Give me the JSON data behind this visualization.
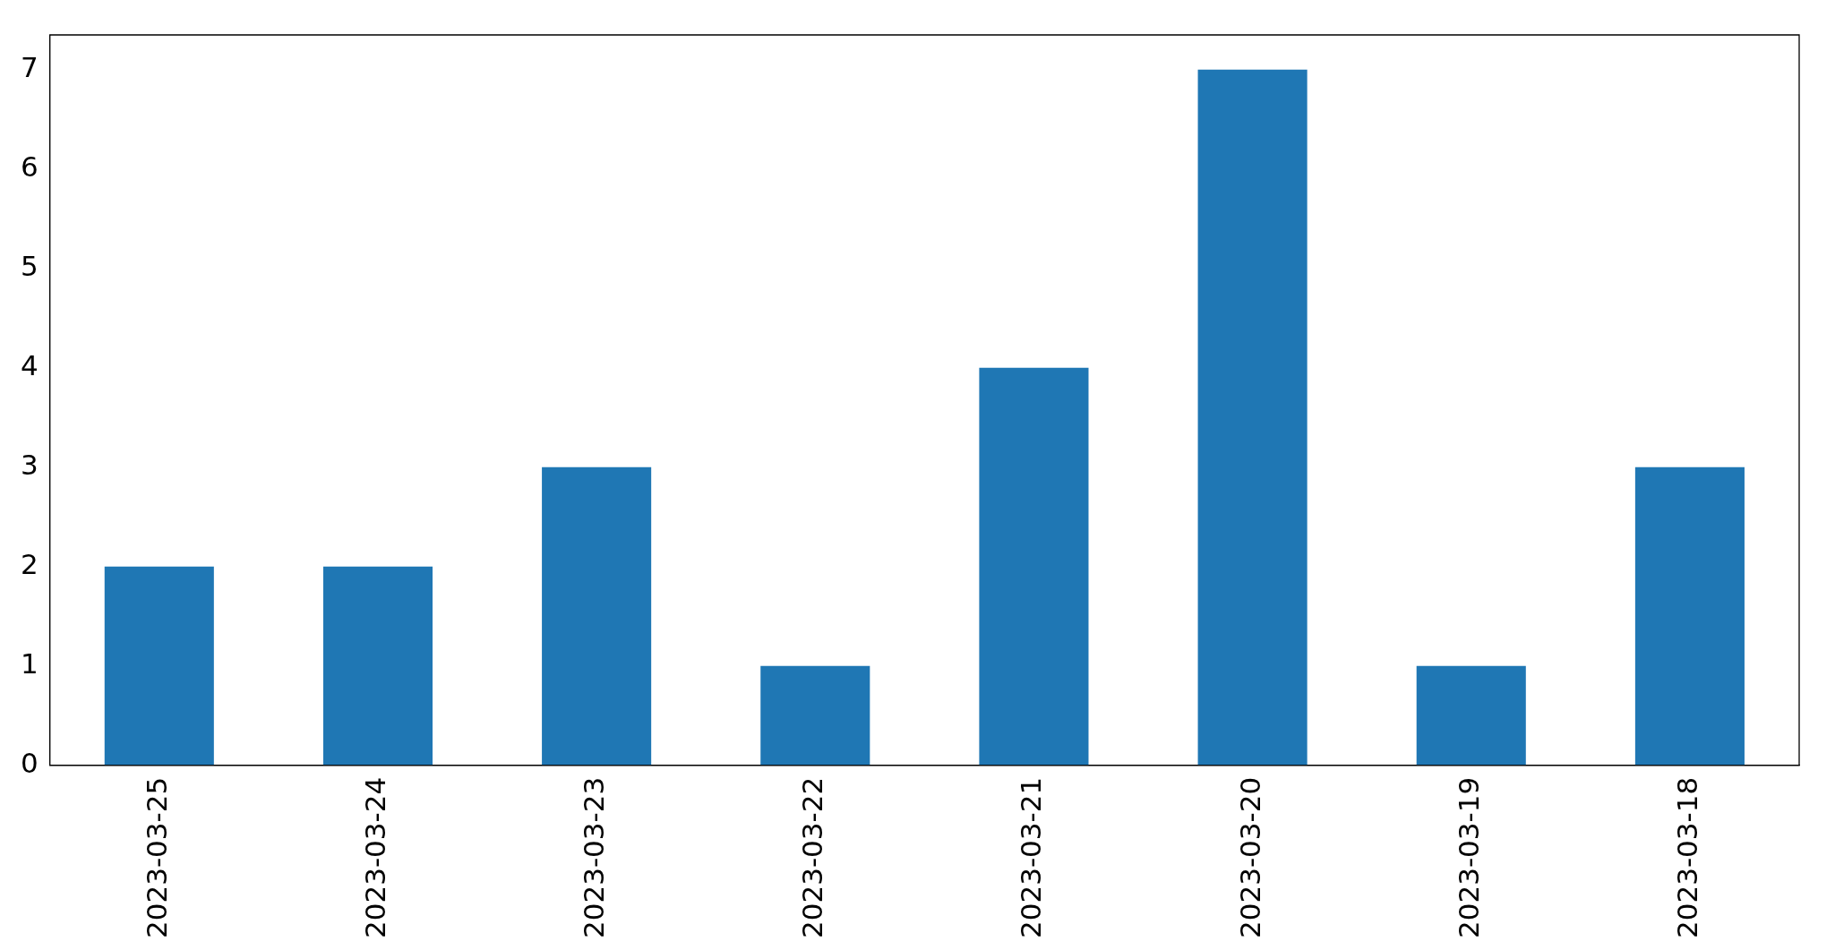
{
  "chart_data": {
    "type": "bar",
    "categories": [
      "2023-03-25",
      "2023-03-24",
      "2023-03-23",
      "2023-03-22",
      "2023-03-21",
      "2023-03-20",
      "2023-03-19",
      "2023-03-18"
    ],
    "values": [
      2,
      2,
      3,
      1,
      4,
      7,
      1,
      3
    ],
    "color": "#1f77b4",
    "ylim": [
      0,
      7.35
    ],
    "yticks": [
      0,
      1,
      2,
      3,
      4,
      5,
      6,
      7
    ],
    "grid": false,
    "legend": false
  }
}
